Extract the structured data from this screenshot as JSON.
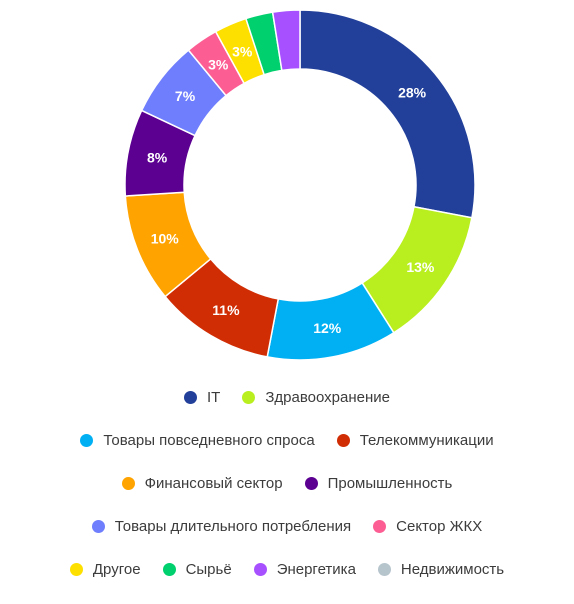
{
  "chart_data": {
    "type": "pie",
    "donut": true,
    "categories": [
      "IT",
      "Здравоохранение",
      "Товары повседневного спроса",
      "Телекоммуникации",
      "Финансовый сектор",
      "Промышленность",
      "Товары длительного потребления",
      "Сектор ЖКХ",
      "Другое",
      "Сырьё",
      "Энергетика",
      "Недвижимость"
    ],
    "values": [
      28,
      13,
      12,
      11,
      10,
      8,
      7,
      3,
      3,
      2.5,
      2.5,
      0
    ],
    "labels": [
      "28%",
      "13%",
      "12%",
      "11%",
      "10%",
      "8%",
      "7%",
      "3%",
      "3%",
      "",
      "",
      ""
    ],
    "colors": [
      "#22409a",
      "#b9ee1f",
      "#00b0f3",
      "#d02d04",
      "#ffa300",
      "#5c0092",
      "#6f7efc",
      "#fc5e93",
      "#fde000",
      "#00d06d",
      "#a750ff",
      "#b6c4cc"
    ],
    "legend_position": "bottom"
  }
}
